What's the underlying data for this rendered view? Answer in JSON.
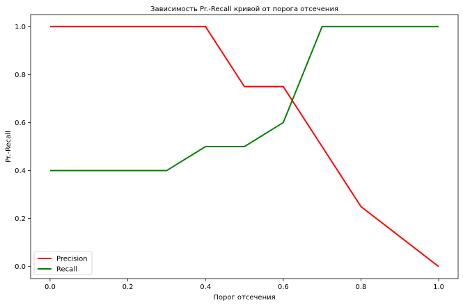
{
  "chart_data": {
    "type": "line",
    "title": "Зависимость Pr.-Recall кривой от порога отсечения",
    "xlabel": "Порог отсечения",
    "ylabel": "Pr.-Recall",
    "xlim": [
      -0.05,
      1.05
    ],
    "ylim": [
      -0.05,
      1.05
    ],
    "xticks": [
      "0.0",
      "0.2",
      "0.4",
      "0.6",
      "0.8",
      "1.0"
    ],
    "yticks": [
      "0.0",
      "0.2",
      "0.4",
      "0.6",
      "0.8",
      "1.0"
    ],
    "grid": false,
    "legend_position": "lower-left",
    "series": [
      {
        "name": "Precision",
        "color": "#ff0000",
        "points": [
          [
            0.0,
            1.0
          ],
          [
            0.1,
            1.0
          ],
          [
            0.2,
            1.0
          ],
          [
            0.3,
            1.0
          ],
          [
            0.4,
            1.0
          ],
          [
            0.5,
            0.75
          ],
          [
            0.6,
            0.75
          ],
          [
            0.7,
            0.5
          ],
          [
            0.8,
            0.25
          ],
          [
            0.9,
            0.125
          ],
          [
            1.0,
            0.0
          ]
        ]
      },
      {
        "name": "Recall",
        "color": "#008000",
        "points": [
          [
            0.0,
            0.4
          ],
          [
            0.1,
            0.4
          ],
          [
            0.2,
            0.4
          ],
          [
            0.3,
            0.4
          ],
          [
            0.4,
            0.5
          ],
          [
            0.5,
            0.5
          ],
          [
            0.6,
            0.6
          ],
          [
            0.7,
            1.0
          ],
          [
            0.8,
            1.0
          ],
          [
            0.9,
            1.0
          ],
          [
            1.0,
            1.0
          ]
        ]
      }
    ]
  }
}
